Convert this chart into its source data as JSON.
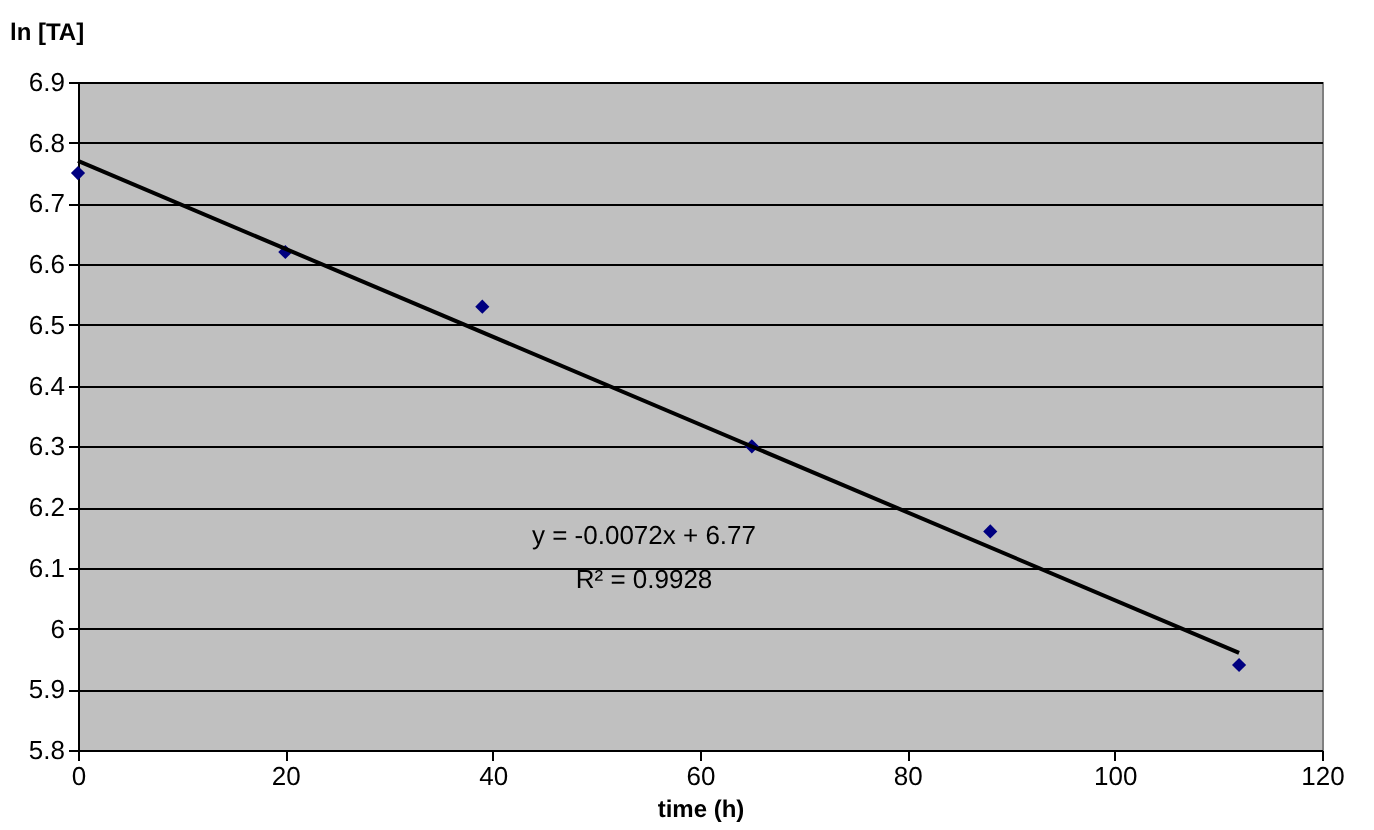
{
  "chart_data": {
    "type": "scatter",
    "xlabel": "time (h)",
    "ylabel": "ln [TA]",
    "series": [
      {
        "color": "#000080",
        "marker": "diamond",
        "x": [
          0,
          20,
          39,
          65,
          88,
          112
        ],
        "values": [
          6.75,
          6.62,
          6.53,
          6.3,
          6.16,
          5.94
        ]
      },
      {
        "type": "line",
        "color": "#000000",
        "marker": "none",
        "line_style": "solid",
        "x": [
          0,
          112
        ],
        "values": [
          6.77,
          5.96
        ]
      }
    ],
    "annotations": [
      "y = -0.0072x + 6.77",
      "R² = 0.9928"
    ],
    "xlim": [
      0,
      120
    ],
    "xticks": [
      0,
      20,
      40,
      60,
      80,
      100,
      120
    ],
    "ylim": [
      5.8,
      6.9
    ],
    "yticks": [
      5.8,
      5.9,
      6,
      6.1,
      6.2,
      6.3,
      6.4,
      6.5,
      6.6,
      6.7,
      6.8,
      6.9
    ],
    "grid": "y"
  }
}
